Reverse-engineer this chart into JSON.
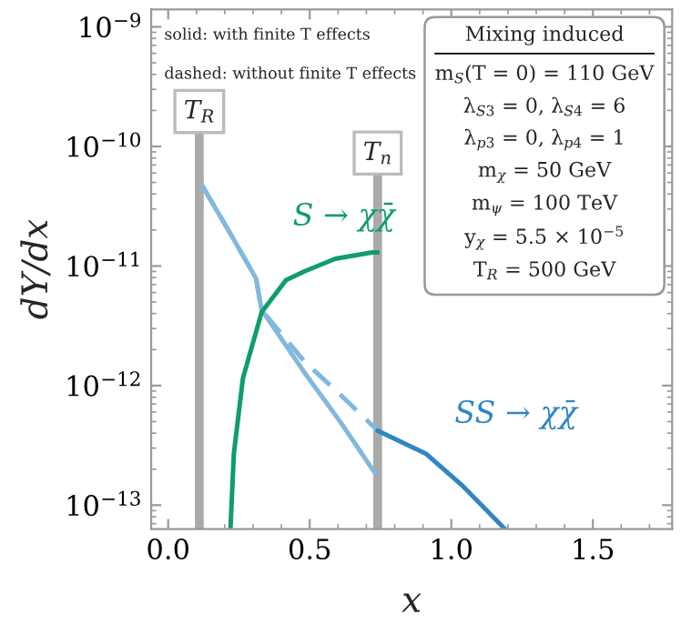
{
  "chart_data": {
    "type": "line",
    "xlabel": "x",
    "ylabel": "dY/dx",
    "log": "y",
    "xlim": [
      -0.06,
      1.78
    ],
    "ylim": [
      6.3e-14,
      1.4e-09
    ],
    "xticks": [
      {
        "value": 0,
        "label": "0.0"
      },
      0.5,
      {
        "value": 1.0,
        "label": "1.0"
      },
      1.5
    ],
    "yticks": [
      {
        "value": 1e-13,
        "label": "10$^{−13}$"
      },
      {
        "value": 1e-12,
        "label": "10$^{−12}$"
      },
      {
        "value": 1e-11,
        "label": "10$^{−11}$"
      },
      {
        "value": 1e-10,
        "label": "10$^{−10}$"
      },
      {
        "value": 1e-09,
        "label": "10$^{−9}$"
      }
    ],
    "grid": false,
    "series": [
      {
        "color": "#82b8dd",
        "line_style": "solid",
        "x": [
          0.12,
          0.22,
          0.31,
          0.33,
          0.48,
          0.61,
          0.73
        ],
        "values": [
          4.7e-11,
          1.86e-11,
          7.9e-12,
          4.3e-12,
          1.3e-12,
          4.9e-13,
          1.86e-13
        ]
      },
      {
        "color": "#82b8dd",
        "line_style": "dashed",
        "x": [
          0.12,
          0.22,
          0.31,
          0.33,
          0.48,
          0.61,
          0.74
        ],
        "values": [
          4.7e-11,
          1.86e-11,
          7.9e-12,
          4.3e-12,
          1.6e-12,
          8.3e-13,
          4.2e-13
        ]
      },
      {
        "color": "#2f86c4",
        "line_style": "solid",
        "x": [
          0.74,
          0.91,
          1.04,
          1.19
        ],
        "values": [
          4.2e-13,
          2.7e-13,
          1.45e-13,
          6.3e-14
        ]
      },
      {
        "color": "#0f9d6e",
        "line_style": "solid",
        "x": [
          0.22,
          0.232,
          0.264,
          0.33,
          0.416,
          0.48,
          0.59,
          0.72,
          0.74
        ],
        "values": [
          6.3e-14,
          2.7e-13,
          1.15e-12,
          4.1e-12,
          7.6e-12,
          9e-12,
          1.15e-11,
          1.3e-11,
          1.3e-11
        ]
      }
    ],
    "ref_lines": [
      {
        "axis": "x",
        "value": 0.11,
        "label": "T$_{R}$",
        "color": "#aaaaaa"
      },
      {
        "axis": "x",
        "value": 0.74,
        "label": "T$_{n}$",
        "color": "#aaaaaa"
      }
    ],
    "annotations": [
      "S → χχ̄",
      "SS → χχ̄",
      "solid: with finite T effects",
      "dashed: without finite T effects",
      "Mixing induced",
      "m$_{S}$(T = 0) = 110 GeV",
      "λ$_{S3}$ = 0, λ$_{S4}$ = 6",
      "λ$_{p3}$ = 0, λ$_{p4}$ = 1",
      "m$_{χ}$ = 50 GeV",
      "m$_{ψ}$ = 100 TeV",
      "y$_{χ}$ = 5.5 × 10$^{−5}$",
      "T$_{R}$ = 500 GeV"
    ]
  }
}
